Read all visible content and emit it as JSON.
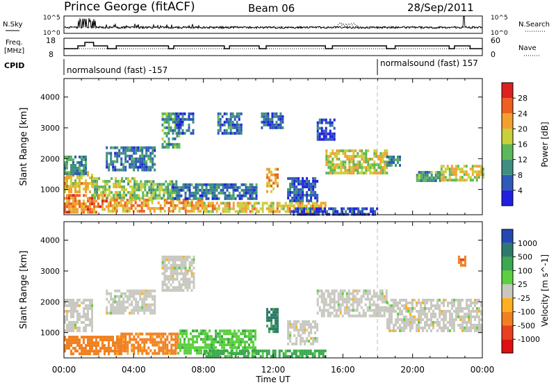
{
  "header": {
    "title": "Prince George (fitACF)",
    "beam": "Beam 06",
    "date": "28/Sep/2011"
  },
  "panels": {
    "nsky": {
      "left_label": "N.Sky",
      "right_label": "N.Search",
      "ticks_left": [
        "10^5",
        "10^0"
      ],
      "ticks_right": [
        "10^5",
        "10^0"
      ]
    },
    "freq": {
      "left_label_line1": "Freq.",
      "left_label_line2": "[MHz]",
      "right_label": "Nave",
      "ticks_left": [
        "18",
        "8"
      ],
      "ticks_right": [
        "60",
        "0"
      ]
    },
    "cpid": {
      "label": "CPID",
      "segments": [
        {
          "text": "normalsound (fast) -157",
          "start_hour": 0
        },
        {
          "text": "normalsound (fast) 157",
          "start_hour": 18
        }
      ]
    }
  },
  "axes": {
    "x_ticks": [
      "00:00",
      "04:00",
      "08:00",
      "12:00",
      "16:00",
      "20:00",
      "00:00"
    ],
    "x_label": "Time UT",
    "y_label": "Slant Range [km]",
    "y_ticks": [
      "1000",
      "2000",
      "3000",
      "4000"
    ]
  },
  "colorbars": {
    "power": {
      "title": "Power [dB]",
      "ticks": [
        "28",
        "24",
        "20",
        "16",
        "12",
        "8",
        "4"
      ],
      "colors": [
        "#2020e0",
        "#2e5ab8",
        "#3f8e82",
        "#5cb85a",
        "#c8d03a",
        "#f2a030",
        "#ee6020",
        "#dd2020"
      ]
    },
    "velocity": {
      "title": "Velocity [m s^-1]",
      "ticks": [
        "1000",
        "500",
        "100",
        "25",
        "-25",
        "-100",
        "-500",
        "-1000"
      ],
      "colors": [
        "#2448b0",
        "#2e7a6a",
        "#3ca850",
        "#5cd040",
        "#c8c8c0",
        "#ffb020",
        "#f08020",
        "#e84020",
        "#e01010"
      ]
    }
  },
  "chart_data": [
    {
      "type": "heatmap",
      "name": "",
      "x_range_hours": [
        0,
        24
      ],
      "y_range_km": [
        180,
        4600
      ],
      "regions": [
        {
          "t0": 0.0,
          "t1": 2.5,
          "r0": 300,
          "r1": 850,
          "v": 26
        },
        {
          "t0": 0.0,
          "t1": 1.6,
          "r0": 900,
          "r1": 1600,
          "v": 22
        },
        {
          "t0": 0.0,
          "t1": 1.2,
          "r0": 1500,
          "r1": 2100,
          "v": 12
        },
        {
          "t0": 1.6,
          "t1": 4.0,
          "r0": 700,
          "r1": 1400,
          "v": 18
        },
        {
          "t0": 2.4,
          "t1": 5.2,
          "r0": 1600,
          "r1": 2400,
          "v": 10
        },
        {
          "t0": 2.5,
          "t1": 8.0,
          "r0": 300,
          "r1": 700,
          "v": 24
        },
        {
          "t0": 4.0,
          "t1": 6.5,
          "r0": 700,
          "r1": 1300,
          "v": 16
        },
        {
          "t0": 5.6,
          "t1": 6.6,
          "r0": 2400,
          "r1": 3500,
          "v": 14
        },
        {
          "t0": 6.4,
          "t1": 7.4,
          "r0": 2800,
          "r1": 3500,
          "v": 8
        },
        {
          "t0": 6.2,
          "t1": 11.0,
          "r0": 700,
          "r1": 1200,
          "v": 10
        },
        {
          "t0": 8.0,
          "t1": 15.0,
          "r0": 300,
          "r1": 600,
          "v": 22
        },
        {
          "t0": 8.8,
          "t1": 10.2,
          "r0": 2800,
          "r1": 3500,
          "v": 10
        },
        {
          "t0": 11.6,
          "t1": 12.2,
          "r0": 900,
          "r1": 1700,
          "v": 24
        },
        {
          "t0": 11.3,
          "t1": 12.6,
          "r0": 3000,
          "r1": 3500,
          "v": 8
        },
        {
          "t0": 12.8,
          "t1": 14.5,
          "r0": 600,
          "r1": 1400,
          "v": 8
        },
        {
          "t0": 14.5,
          "t1": 15.5,
          "r0": 2600,
          "r1": 3300,
          "v": 6
        },
        {
          "t0": 15.0,
          "t1": 18.5,
          "r0": 1500,
          "r1": 2300,
          "v": 20
        },
        {
          "t0": 18.5,
          "t1": 19.3,
          "r0": 1800,
          "r1": 2100,
          "v": 12
        },
        {
          "t0": 20.2,
          "t1": 21.6,
          "r0": 1300,
          "r1": 1600,
          "v": 14
        },
        {
          "t0": 21.6,
          "t1": 24.0,
          "r0": 1300,
          "r1": 1800,
          "v": 20
        },
        {
          "t0": 13.0,
          "t1": 18.0,
          "r0": 180,
          "r1": 420,
          "v": 6
        }
      ]
    },
    {
      "type": "heatmap",
      "name": "",
      "x_range_hours": [
        0,
        24
      ],
      "y_range_km": [
        180,
        4600
      ],
      "regions": [
        {
          "t0": 0.0,
          "t1": 1.6,
          "r0": 1100,
          "r1": 2100,
          "v": 0
        },
        {
          "t0": 0.0,
          "t1": 3.5,
          "r0": 300,
          "r1": 900,
          "v": -300
        },
        {
          "t0": 3.0,
          "t1": 6.5,
          "r0": 300,
          "r1": 1000,
          "v": -150
        },
        {
          "t0": 2.4,
          "t1": 5.2,
          "r0": 1600,
          "r1": 2400,
          "v": 0
        },
        {
          "t0": 5.6,
          "t1": 7.4,
          "r0": 2400,
          "r1": 3500,
          "v": 0
        },
        {
          "t0": 6.5,
          "t1": 11.0,
          "r0": 300,
          "r1": 1100,
          "v": 80
        },
        {
          "t0": 8.0,
          "t1": 15.0,
          "r0": 200,
          "r1": 450,
          "v": 150
        },
        {
          "t0": 11.6,
          "t1": 12.2,
          "r0": 1000,
          "r1": 1800,
          "v": 700
        },
        {
          "t0": 12.8,
          "t1": 14.5,
          "r0": 600,
          "r1": 1400,
          "v": 0
        },
        {
          "t0": 14.5,
          "t1": 18.5,
          "r0": 1500,
          "r1": 2400,
          "v": 0
        },
        {
          "t0": 18.5,
          "t1": 24.0,
          "r0": 1100,
          "r1": 2100,
          "v": 0
        },
        {
          "t0": 22.6,
          "t1": 23.0,
          "r0": 3200,
          "r1": 3500,
          "v": -400
        }
      ]
    }
  ]
}
